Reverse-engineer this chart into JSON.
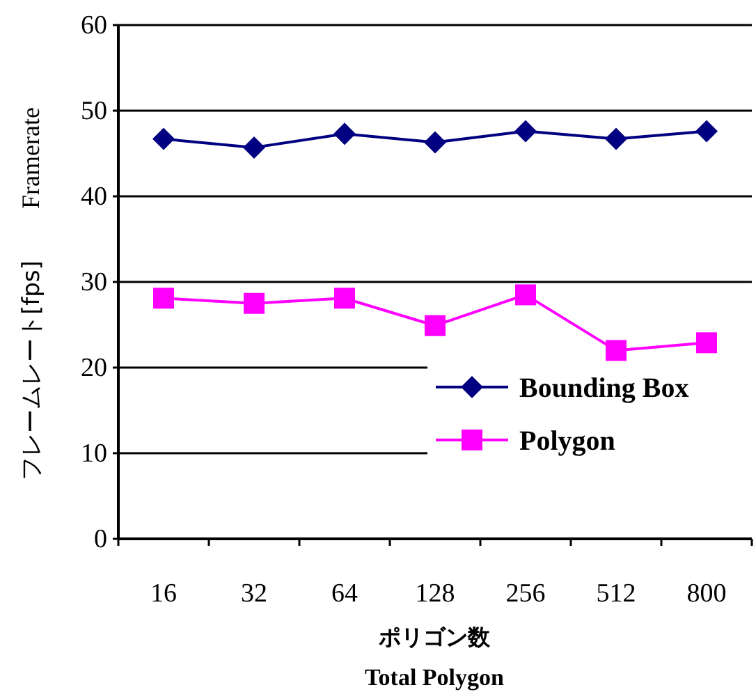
{
  "chart_data": {
    "type": "line",
    "xlabel": "ポリゴン数",
    "ylabel": "フレームレート[fps]",
    "annotations": [
      "Framerate",
      "Total Polygon"
    ],
    "categories": [
      "16",
      "32",
      "64",
      "128",
      "256",
      "512",
      "800"
    ],
    "series": [
      {
        "name": "Bounding Box",
        "color": "#000080",
        "marker": "diamond",
        "values": [
          46.7,
          45.7,
          47.3,
          46.3,
          47.6,
          46.7,
          47.6
        ]
      },
      {
        "name": "Polygon",
        "color": "#ff00ff",
        "marker": "square",
        "values": [
          28.1,
          27.5,
          28.1,
          24.9,
          28.5,
          22.0,
          22.9
        ]
      }
    ],
    "ylim": [
      0,
      60
    ],
    "yticks": [
      0,
      10,
      20,
      30,
      40,
      50,
      60
    ],
    "grid": "y",
    "legend": "right"
  }
}
